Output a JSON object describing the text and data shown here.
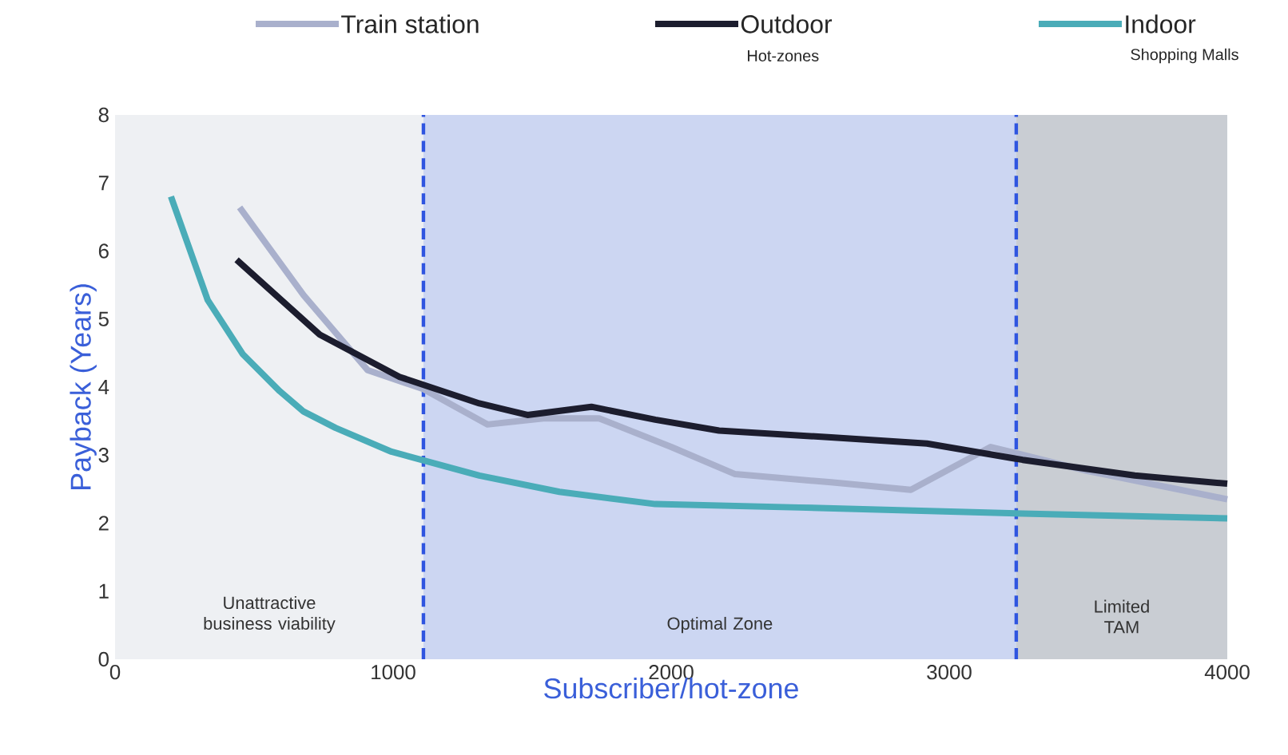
{
  "chart_data": {
    "type": "line",
    "xlabel": "Subscriber/hot-zone",
    "ylabel": "Payback (Years)",
    "xlim": [
      0,
      4000
    ],
    "xticks": [
      0,
      1000,
      2000,
      3000,
      4000
    ],
    "ylim": [
      0,
      8
    ],
    "yticks": [
      0,
      1,
      2,
      3,
      4,
      5,
      6,
      7,
      8
    ],
    "grid": false,
    "legend": "top",
    "marker": "none",
    "line_style": "solid",
    "series": [
      {
        "name": "Train station",
        "color": "#a9b0cc",
        "x": [
          448,
          678,
          908,
          1109,
          1339,
          1540,
          1741,
          2000,
          2230,
          2575,
          2862,
          3149,
          3494,
          4000
        ],
        "values": [
          6.64,
          5.35,
          4.25,
          3.97,
          3.45,
          3.54,
          3.54,
          3.12,
          2.72,
          2.6,
          2.49,
          3.12,
          2.77,
          2.35
        ]
      },
      {
        "name": "Outdoor",
        "color": "#1c1d2e",
        "x": [
          437,
          736,
          1023,
          1310,
          1483,
          1713,
          1943,
          2172,
          2575,
          2920,
          3264,
          3667,
          4000
        ],
        "values": [
          5.87,
          4.77,
          4.15,
          3.76,
          3.59,
          3.71,
          3.52,
          3.36,
          3.26,
          3.17,
          2.93,
          2.7,
          2.58
        ]
      },
      {
        "name": "Indoor",
        "color": "#4aacb8",
        "x": [
          201,
          333,
          460,
          592,
          678,
          793,
          994,
          1310,
          1598,
          1943,
          2460,
          3264,
          4000
        ],
        "values": [
          6.8,
          5.28,
          4.48,
          3.94,
          3.64,
          3.4,
          3.05,
          2.7,
          2.46,
          2.28,
          2.23,
          2.14,
          2.07
        ]
      }
    ],
    "bands": [
      {
        "axis": "x",
        "from": 0,
        "to": 1109,
        "label": "Unattractive business viability",
        "color": "#eef0f3"
      },
      {
        "axis": "x",
        "from": 1109,
        "to": 3241,
        "label": "Optimal Zone",
        "color": "#ccd6f2"
      },
      {
        "axis": "x",
        "from": 3241,
        "to": 4000,
        "label": "Limited TAM",
        "color": "#c9cdd3"
      }
    ],
    "ref_lines": [
      {
        "axis": "x",
        "value": 1109,
        "color": "#2f55e0",
        "line_style": "dashed"
      },
      {
        "axis": "x",
        "value": 3241,
        "color": "#2f55e0",
        "line_style": "dashed"
      }
    ],
    "annotations": [
      "Hot-zones",
      "Shopping Malls"
    ]
  }
}
